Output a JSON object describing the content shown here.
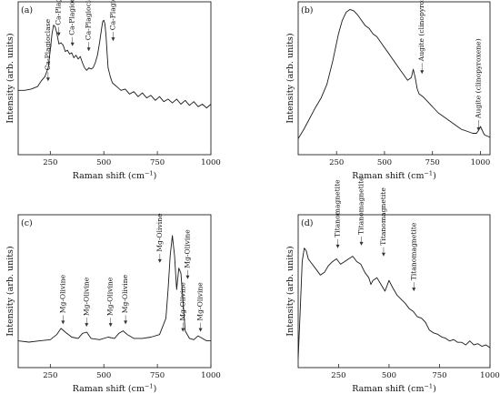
{
  "chart_data": [
    {
      "id": "a",
      "type": "line",
      "panel_label": "(a)",
      "xlabel": "Raman shift (cm",
      "xlabel_sup": "−1",
      "xlabel_end": ")",
      "ylabel": "Intensity (arb. units)",
      "xlim": [
        100,
        1000
      ],
      "ylim": [
        0,
        1
      ],
      "xticks": [
        250,
        500,
        750,
        1000
      ],
      "series": [
        {
          "x": [
            100,
            130,
            160,
            190,
            210,
            225,
            240,
            250,
            258,
            265,
            272,
            280,
            290,
            300,
            310,
            320,
            330,
            340,
            350,
            360,
            370,
            380,
            390,
            400,
            410,
            420,
            430,
            440,
            450,
            460,
            470,
            480,
            490,
            495,
            500,
            505,
            510,
            515,
            520,
            530,
            540,
            560,
            580,
            600,
            620,
            640,
            660,
            680,
            700,
            720,
            740,
            760,
            780,
            800,
            820,
            840,
            860,
            880,
            900,
            920,
            940,
            960,
            980,
            1000
          ],
          "y": [
            0.44,
            0.44,
            0.45,
            0.47,
            0.52,
            0.55,
            0.62,
            0.76,
            0.89,
            0.96,
            0.95,
            0.9,
            0.81,
            0.82,
            0.8,
            0.75,
            0.76,
            0.73,
            0.74,
            0.7,
            0.72,
            0.69,
            0.71,
            0.66,
            0.62,
            0.6,
            0.62,
            0.61,
            0.62,
            0.66,
            0.72,
            0.82,
            0.94,
            0.99,
            1.0,
            0.97,
            0.88,
            0.74,
            0.62,
            0.55,
            0.5,
            0.47,
            0.44,
            0.45,
            0.41,
            0.43,
            0.39,
            0.42,
            0.38,
            0.4,
            0.36,
            0.39,
            0.35,
            0.37,
            0.34,
            0.37,
            0.33,
            0.36,
            0.32,
            0.35,
            0.31,
            0.33,
            0.3,
            0.33
          ]
        }
      ],
      "annotations": [
        {
          "text": "Ca-Plagioclase",
          "x": 248,
          "y": 0.6
        },
        {
          "text": "Ca-Plagioclase",
          "x": 298,
          "y": 0.96
        },
        {
          "text": "Ca-Plagioclase",
          "x": 362,
          "y": 0.88
        },
        {
          "text": "Ca-Plagioclase",
          "x": 438,
          "y": 0.84
        },
        {
          "text": "Ca-Plagioclase",
          "x": 552,
          "y": 0.92
        }
      ]
    },
    {
      "id": "b",
      "type": "line",
      "panel_label": "(b)",
      "xlabel": "Raman shift (cm",
      "xlabel_sup": "−1",
      "xlabel_end": ")",
      "ylabel": "Intensity (arb. units)",
      "xlim": [
        50,
        1050
      ],
      "ylim": [
        0,
        1
      ],
      "xticks": [
        250,
        500,
        750,
        1000
      ],
      "series": [
        {
          "x": [
            50,
            80,
            110,
            140,
            170,
            200,
            230,
            260,
            280,
            300,
            320,
            340,
            360,
            380,
            400,
            420,
            440,
            460,
            480,
            500,
            520,
            540,
            560,
            580,
            600,
            620,
            640,
            650,
            660,
            670,
            680,
            700,
            720,
            740,
            760,
            780,
            800,
            820,
            840,
            860,
            880,
            900,
            920,
            940,
            960,
            980,
            990,
            1000,
            1010,
            1020,
            1035,
            1050
          ],
          "y": [
            0.05,
            0.12,
            0.2,
            0.28,
            0.35,
            0.45,
            0.62,
            0.82,
            0.92,
            0.98,
            1.0,
            0.99,
            0.96,
            0.92,
            0.88,
            0.86,
            0.82,
            0.8,
            0.76,
            0.72,
            0.68,
            0.64,
            0.6,
            0.56,
            0.52,
            0.48,
            0.5,
            0.56,
            0.5,
            0.42,
            0.38,
            0.36,
            0.33,
            0.3,
            0.27,
            0.24,
            0.22,
            0.2,
            0.18,
            0.16,
            0.14,
            0.12,
            0.11,
            0.1,
            0.09,
            0.09,
            0.11,
            0.14,
            0.11,
            0.08,
            0.07,
            0.06
          ]
        }
      ],
      "annotations": [
        {
          "text": "Augite (clinopyroxene)",
          "x": 705,
          "y": 0.62
        },
        {
          "text": "Augite (clinopyroxene)",
          "x": 1000,
          "y": 0.2
        }
      ]
    },
    {
      "id": "c",
      "type": "line",
      "panel_label": "(c)",
      "xlabel": "Raman shift (cm",
      "xlabel_sup": "−1",
      "xlabel_end": ")",
      "ylabel": "Intensity (arb. units)",
      "xlim": [
        100,
        1000
      ],
      "ylim": [
        0,
        1
      ],
      "xticks": [
        250,
        500,
        750,
        1000
      ],
      "series": [
        {
          "x": [
            100,
            150,
            200,
            250,
            280,
            300,
            320,
            350,
            380,
            400,
            420,
            440,
            480,
            520,
            550,
            570,
            590,
            610,
            640,
            680,
            720,
            760,
            790,
            800,
            810,
            820,
            830,
            840,
            850,
            860,
            870,
            880,
            900,
            920,
            940,
            960,
            980,
            1000
          ],
          "y": [
            0.14,
            0.13,
            0.14,
            0.15,
            0.19,
            0.24,
            0.21,
            0.17,
            0.16,
            0.2,
            0.21,
            0.16,
            0.15,
            0.17,
            0.16,
            0.2,
            0.22,
            0.19,
            0.16,
            0.16,
            0.17,
            0.19,
            0.32,
            0.55,
            0.82,
            0.98,
            0.82,
            0.55,
            0.72,
            0.68,
            0.45,
            0.22,
            0.16,
            0.15,
            0.18,
            0.16,
            0.14,
            0.14
          ]
        }
      ],
      "annotations": [
        {
          "text": "Mg-Olivine",
          "x": 318,
          "y": 0.36
        },
        {
          "text": "Mg-Olivine",
          "x": 428,
          "y": 0.34
        },
        {
          "text": "Mg-Olivine",
          "x": 540,
          "y": 0.34
        },
        {
          "text": "Mg-Olivine",
          "x": 610,
          "y": 0.36
        },
        {
          "text": "Mg-Olivine",
          "x": 770,
          "y": 0.85
        },
        {
          "text": "Mg-Olivine",
          "x": 900,
          "y": 0.72
        },
        {
          "text": "Mg-Olivine",
          "x": 878,
          "y": 0.3
        },
        {
          "text": "Mg-Olivine",
          "x": 960,
          "y": 0.3
        }
      ]
    },
    {
      "id": "d",
      "type": "line",
      "panel_label": "(d)",
      "xlabel": "Raman shift (cm",
      "xlabel_sup": "−1",
      "xlabel_end": ")",
      "ylabel": "Intensity (arb. units)",
      "xlim": [
        50,
        1000
      ],
      "ylim": [
        0,
        1
      ],
      "xticks": [
        250,
        500,
        750,
        1000
      ],
      "series": [
        {
          "x": [
            50,
            60,
            70,
            80,
            90,
            100,
            110,
            120,
            140,
            160,
            180,
            200,
            220,
            240,
            260,
            280,
            300,
            320,
            340,
            360,
            380,
            400,
            410,
            420,
            440,
            460,
            480,
            500,
            520,
            540,
            560,
            580,
            600,
            620,
            640,
            660,
            680,
            700,
            720,
            740,
            760,
            780,
            800,
            820,
            840,
            860,
            880,
            900,
            920,
            940,
            960,
            980,
            1000
          ],
          "y": [
            0.0,
            0.35,
            0.72,
            0.82,
            0.8,
            0.74,
            0.72,
            0.7,
            0.66,
            0.62,
            0.64,
            0.69,
            0.72,
            0.74,
            0.7,
            0.72,
            0.74,
            0.76,
            0.72,
            0.7,
            0.64,
            0.6,
            0.55,
            0.58,
            0.6,
            0.55,
            0.5,
            0.58,
            0.52,
            0.47,
            0.44,
            0.41,
            0.37,
            0.35,
            0.31,
            0.3,
            0.27,
            0.21,
            0.19,
            0.18,
            0.16,
            0.15,
            0.13,
            0.14,
            0.12,
            0.12,
            0.1,
            0.13,
            0.1,
            0.11,
            0.09,
            0.1,
            0.08
          ]
        }
      ],
      "annotations": [
        {
          "text": "Titanomagnetite",
          "x": 255,
          "y": 0.9
        },
        {
          "text": "Titanomagnetite",
          "x": 372,
          "y": 0.92
        },
        {
          "text": "Titanomagnetite",
          "x": 482,
          "y": 0.84
        },
        {
          "text": "Titanomagnetite",
          "x": 632,
          "y": 0.58
        }
      ]
    }
  ]
}
